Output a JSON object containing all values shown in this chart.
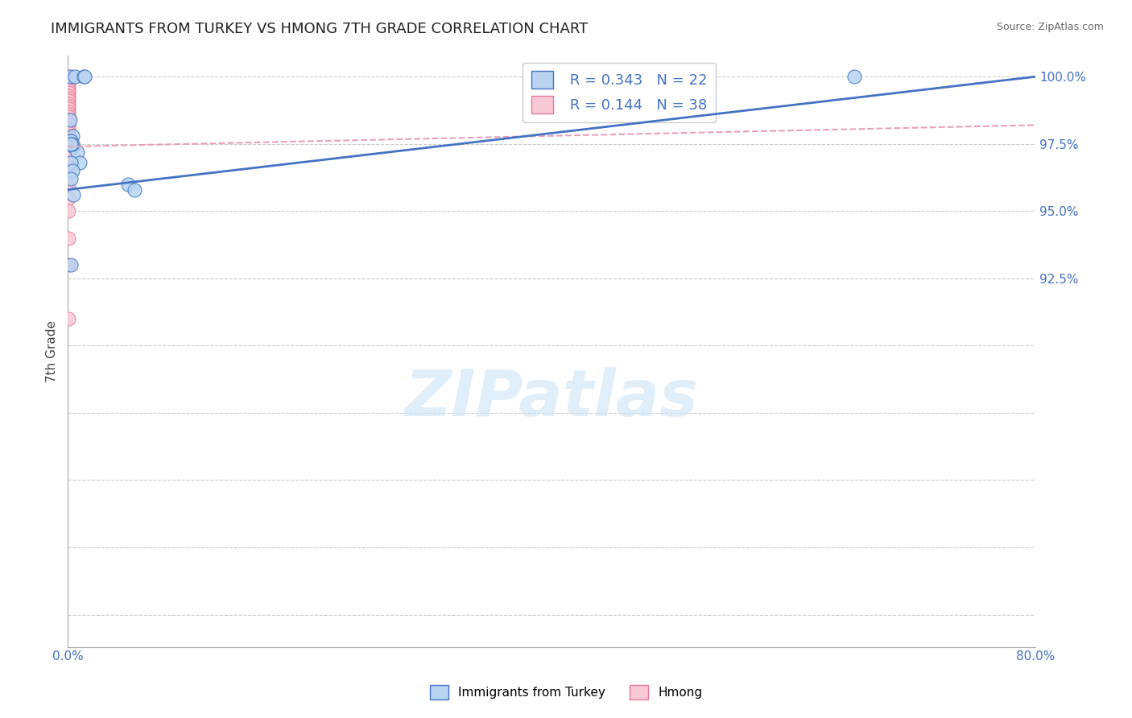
{
  "title": "IMMIGRANTS FROM TURKEY VS HMONG 7TH GRADE CORRELATION CHART",
  "source": "Source: ZipAtlas.com",
  "ylabel": "7th Grade",
  "xlim": [
    0.0,
    0.8
  ],
  "ylim": [
    0.788,
    1.008
  ],
  "xticks": [
    0.0,
    0.1,
    0.2,
    0.3,
    0.4,
    0.5,
    0.6,
    0.7,
    0.8
  ],
  "xticklabels": [
    "0.0%",
    "",
    "",
    "",
    "",
    "",
    "",
    "",
    "80.0%"
  ],
  "yticks": [
    0.8,
    0.825,
    0.85,
    0.875,
    0.9,
    0.925,
    0.95,
    0.975,
    1.0
  ],
  "yticklabels": [
    "",
    "",
    "",
    "",
    "",
    "92.5%",
    "95.0%",
    "97.5%",
    "100.0%"
  ],
  "watermark_text": "ZIPatlas",
  "legend_r_turkey": "R = 0.343",
  "legend_n_turkey": "N = 22",
  "legend_r_hmong": "R = 0.144",
  "legend_n_hmong": "N = 38",
  "turkey_fill": "#b8d4f0",
  "turkey_edge": "#4472c4",
  "hmong_fill": "#f8c8d4",
  "hmong_edge": "#e87898",
  "turkey_line_color": "#4472c4",
  "hmong_line_color": "#e8a0b8",
  "grid_color": "#cccccc",
  "background_color": "#ffffff",
  "title_fontsize": 13,
  "turkey_x": [
    0.003,
    0.006,
    0.013,
    0.014,
    0.002,
    0.004,
    0.005,
    0.008,
    0.01,
    0.05,
    0.055,
    0.002,
    0.003,
    0.004,
    0.003,
    0.003,
    0.004,
    0.003,
    0.005,
    0.003,
    0.65,
    0.003
  ],
  "turkey_y": [
    1.0,
    1.0,
    1.0,
    1.0,
    0.984,
    0.978,
    0.974,
    0.972,
    0.968,
    0.96,
    0.958,
    0.976,
    0.976,
    0.975,
    0.975,
    0.968,
    0.965,
    0.962,
    0.956,
    0.93,
    1.0,
    0.975
  ],
  "hmong_x": [
    0.001,
    0.001,
    0.001,
    0.001,
    0.001,
    0.001,
    0.001,
    0.001,
    0.001,
    0.001,
    0.001,
    0.001,
    0.001,
    0.001,
    0.001,
    0.001,
    0.001,
    0.001,
    0.001,
    0.001,
    0.001,
    0.001,
    0.001,
    0.001,
    0.001,
    0.001,
    0.001,
    0.001,
    0.001,
    0.001,
    0.001,
    0.001,
    0.001,
    0.001,
    0.001,
    0.001,
    0.001,
    0.001
  ],
  "hmong_y": [
    1.0,
    0.999,
    0.998,
    0.997,
    0.996,
    0.995,
    0.994,
    0.993,
    0.992,
    0.991,
    0.99,
    0.989,
    0.988,
    0.987,
    0.986,
    0.985,
    0.984,
    0.983,
    0.982,
    0.981,
    0.98,
    0.979,
    0.978,
    0.977,
    0.976,
    0.975,
    0.974,
    0.973,
    0.972,
    0.971,
    0.97,
    0.965,
    0.96,
    0.955,
    0.95,
    0.94,
    0.93,
    0.91
  ],
  "turkey_line_x": [
    0.0,
    0.8
  ],
  "turkey_line_y": [
    0.958,
    1.0
  ],
  "hmong_line_x": [
    0.0,
    0.8
  ],
  "hmong_line_y": [
    0.974,
    0.982
  ]
}
